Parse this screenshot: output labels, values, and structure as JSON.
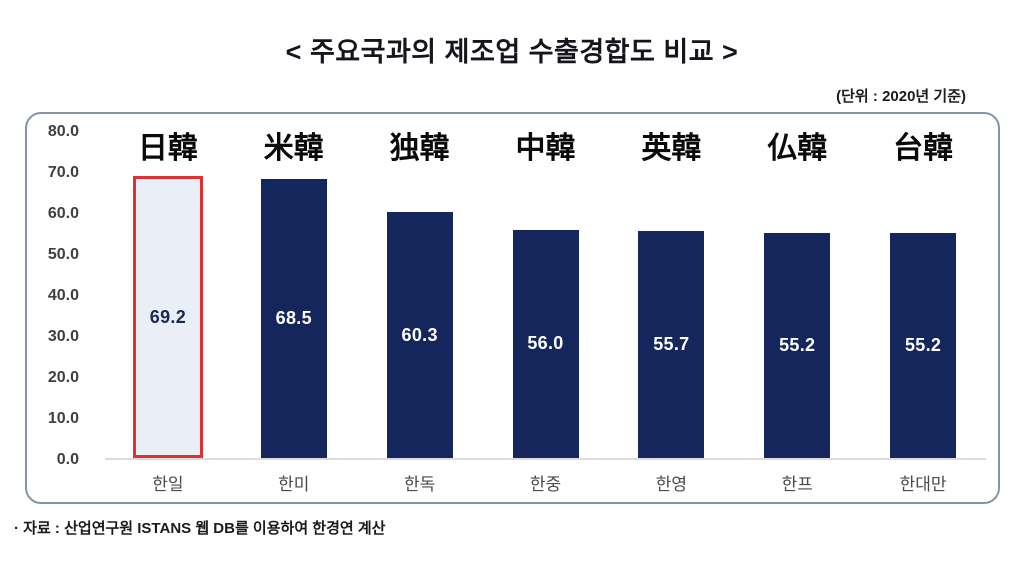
{
  "header": {
    "title": "< 주요국과의 제조업 수출경합도 비교 >",
    "unit_note": "(단위 : 2020년 기준)"
  },
  "footer": {
    "source": "· 자료 : 산업연구원 ISTANS 웹 DB를 이용하여 한경연 계산"
  },
  "chart_data": {
    "type": "bar",
    "title": "주요국과의 제조업 수출경합도 비교",
    "unit": "2020년 기준",
    "categories": [
      "한일",
      "한미",
      "한독",
      "한중",
      "한영",
      "한프",
      "한대만"
    ],
    "pair_labels": [
      "日韓",
      "米韓",
      "独韓",
      "中韓",
      "英韓",
      "仏韓",
      "台韓"
    ],
    "values": [
      69.2,
      68.5,
      60.3,
      56.0,
      55.7,
      55.2,
      55.2
    ],
    "value_labels": [
      "69.2",
      "68.5",
      "60.3",
      "56.0",
      "55.7",
      "55.2",
      "55.2"
    ],
    "ylim": [
      0,
      80
    ],
    "ytick_step": 10,
    "yticks": [
      "80.0",
      "70.0",
      "60.0",
      "50.0",
      "40.0",
      "30.0",
      "20.0",
      "10.0",
      "0.0"
    ],
    "grid": false,
    "legend": "none",
    "highlight_index": 0,
    "colors": {
      "bar": "#14265c",
      "highlight_fill": "#e9eef7",
      "highlight_border": "#e03030",
      "value_label": "#ffffff",
      "highlight_value_label": "#1b2a55"
    }
  }
}
